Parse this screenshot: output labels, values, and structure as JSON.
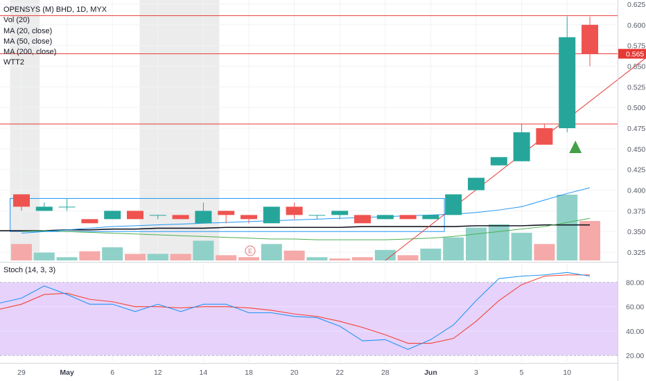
{
  "legend": {
    "title": "OPENSYS (M) BHD, 1D, MYX",
    "lines": [
      "Vol (20)",
      "MA (20, close)",
      "MA (50, close)",
      "MA (200, close)",
      "WTT2"
    ]
  },
  "stoch_label": "Stoch (14, 3, 3)",
  "price_tag": "0.565",
  "colors": {
    "up": "#26a69a",
    "down": "#ef5350",
    "upVol": "#8fd1c8",
    "downVol": "#f5aaa9",
    "ma20": "#2196f3",
    "ma50": "#4caf50",
    "ma200": "#131722",
    "resistance": "#e53935",
    "signal": "#43a047",
    "stochK": "#2196f3",
    "stochD": "#f44336",
    "stochBand": "#e6d2fb"
  },
  "chart_data": [
    {
      "type": "candlestick",
      "title": "OPENSYS (M) BHD, 1D, MYX",
      "ylim": [
        0.315,
        0.63
      ],
      "y_ticks": [
        "0.625",
        "0.600",
        "0.575",
        "0.550",
        "0.525",
        "0.500",
        "0.475",
        "0.450",
        "0.425",
        "0.400",
        "0.375",
        "0.350",
        "0.325"
      ],
      "x_ticks": [
        {
          "idx": 0,
          "label": "29",
          "bold": false
        },
        {
          "idx": 2,
          "label": "May",
          "bold": true
        },
        {
          "idx": 4,
          "label": "6",
          "bold": false
        },
        {
          "idx": 6,
          "label": "12",
          "bold": false
        },
        {
          "idx": 8,
          "label": "14",
          "bold": false
        },
        {
          "idx": 10,
          "label": "18",
          "bold": false
        },
        {
          "idx": 12,
          "label": "20",
          "bold": false
        },
        {
          "idx": 14,
          "label": "22",
          "bold": false
        },
        {
          "idx": 16,
          "label": "28",
          "bold": false
        },
        {
          "idx": 18,
          "label": "Jun",
          "bold": true
        },
        {
          "idx": 20,
          "label": "3",
          "bold": false
        },
        {
          "idx": 22,
          "label": "5",
          "bold": false
        },
        {
          "idx": 24,
          "label": "10",
          "bold": false
        }
      ],
      "candles": [
        {
          "o": 0.395,
          "h": 0.395,
          "c": 0.38,
          "l": 0.375
        },
        {
          "o": 0.375,
          "h": 0.385,
          "c": 0.38,
          "l": 0.375
        },
        {
          "o": 0.38,
          "h": 0.39,
          "c": 0.38,
          "l": 0.375
        },
        {
          "o": 0.365,
          "h": 0.365,
          "c": 0.36,
          "l": 0.36
        },
        {
          "o": 0.365,
          "h": 0.375,
          "c": 0.375,
          "l": 0.365
        },
        {
          "o": 0.375,
          "h": 0.375,
          "c": 0.365,
          "l": 0.365
        },
        {
          "o": 0.37,
          "h": 0.37,
          "c": 0.37,
          "l": 0.365
        },
        {
          "o": 0.37,
          "h": 0.37,
          "c": 0.365,
          "l": 0.365
        },
        {
          "o": 0.36,
          "h": 0.385,
          "c": 0.375,
          "l": 0.36
        },
        {
          "o": 0.375,
          "h": 0.375,
          "c": 0.37,
          "l": 0.36
        },
        {
          "o": 0.37,
          "h": 0.37,
          "c": 0.365,
          "l": 0.36
        },
        {
          "o": 0.36,
          "h": 0.38,
          "c": 0.38,
          "l": 0.36
        },
        {
          "o": 0.38,
          "h": 0.385,
          "c": 0.37,
          "l": 0.365
        },
        {
          "o": 0.37,
          "h": 0.37,
          "c": 0.37,
          "l": 0.365
        },
        {
          "o": 0.37,
          "h": 0.375,
          "c": 0.375,
          "l": 0.365
        },
        {
          "o": 0.37,
          "h": 0.37,
          "c": 0.36,
          "l": 0.36
        },
        {
          "o": 0.365,
          "h": 0.37,
          "c": 0.37,
          "l": 0.365
        },
        {
          "o": 0.37,
          "h": 0.37,
          "c": 0.365,
          "l": 0.365
        },
        {
          "o": 0.365,
          "h": 0.37,
          "c": 0.37,
          "l": 0.365
        },
        {
          "o": 0.37,
          "h": 0.395,
          "c": 0.395,
          "l": 0.37
        },
        {
          "o": 0.4,
          "h": 0.415,
          "c": 0.415,
          "l": 0.4
        },
        {
          "o": 0.43,
          "h": 0.44,
          "c": 0.44,
          "l": 0.43
        },
        {
          "o": 0.435,
          "h": 0.48,
          "c": 0.47,
          "l": 0.435
        },
        {
          "o": 0.475,
          "h": 0.48,
          "c": 0.455,
          "l": 0.455
        },
        {
          "o": 0.475,
          "h": 0.61,
          "c": 0.585,
          "l": 0.47
        },
        {
          "o": 0.6,
          "h": 0.61,
          "c": 0.565,
          "l": 0.55
        }
      ],
      "volume": [
        {
          "v": 0.25,
          "up": false
        },
        {
          "v": 0.12,
          "up": true
        },
        {
          "v": 0.05,
          "up": true
        },
        {
          "v": 0.14,
          "up": false
        },
        {
          "v": 0.2,
          "up": true
        },
        {
          "v": 0.1,
          "up": false
        },
        {
          "v": 0.1,
          "up": true
        },
        {
          "v": 0.1,
          "up": false
        },
        {
          "v": 0.3,
          "up": true
        },
        {
          "v": 0.08,
          "up": false
        },
        {
          "v": 0.05,
          "up": false
        },
        {
          "v": 0.25,
          "up": true
        },
        {
          "v": 0.15,
          "up": false
        },
        {
          "v": 0.05,
          "up": true
        },
        {
          "v": 0.03,
          "up": false
        },
        {
          "v": 0.05,
          "up": false
        },
        {
          "v": 0.16,
          "up": true
        },
        {
          "v": 0.08,
          "up": false
        },
        {
          "v": 0.18,
          "up": true
        },
        {
          "v": 0.35,
          "up": true
        },
        {
          "v": 0.5,
          "up": true
        },
        {
          "v": 0.55,
          "up": true
        },
        {
          "v": 0.42,
          "up": true
        },
        {
          "v": 0.25,
          "up": false
        },
        {
          "v": 1.0,
          "up": true
        },
        {
          "v": 0.6,
          "up": false
        }
      ],
      "ma20": [
        0.348,
        0.35,
        0.352,
        0.354,
        0.356,
        0.357,
        0.358,
        0.359,
        0.36,
        0.361,
        0.362,
        0.363,
        0.364,
        0.365,
        0.366,
        0.367,
        0.368,
        0.369,
        0.37,
        0.371,
        0.373,
        0.376,
        0.38,
        0.388,
        0.396,
        0.403
      ],
      "ma50": [
        0.35,
        0.351,
        0.35,
        0.349,
        0.348,
        0.347,
        0.346,
        0.345,
        0.344,
        0.343,
        0.342,
        0.341,
        0.341,
        0.34,
        0.34,
        0.34,
        0.34,
        0.341,
        0.342,
        0.344,
        0.347,
        0.35,
        0.353,
        0.356,
        0.361,
        0.366
      ],
      "ma200": [
        0.351,
        0.351,
        0.352,
        0.352,
        0.353,
        0.353,
        0.354,
        0.354,
        0.354,
        0.355,
        0.355,
        0.355,
        0.355,
        0.355,
        0.355,
        0.356,
        0.356,
        0.356,
        0.356,
        0.356,
        0.357,
        0.357,
        0.357,
        0.358,
        0.358,
        0.358
      ],
      "hlines": [
        0.611,
        0.565,
        0.48
      ],
      "trendline": [
        {
          "idx": 16.0,
          "y": 0.315
        },
        {
          "idx": 27.6,
          "y": 0.563
        }
      ],
      "channel": {
        "top": 0.39,
        "bottom": 0.35,
        "from_idx": -0.5,
        "to_idx": 18.6
      },
      "weekend_shades": [
        {
          "from_idx": -0.5,
          "to_idx": 0.8
        },
        {
          "from_idx": 5.2,
          "to_idx": 8.7
        }
      ],
      "signal_idx": 24,
      "signal_price": 0.47
    },
    {
      "type": "line",
      "title": "Stoch (14, 3, 3)",
      "ylim": [
        15,
        95
      ],
      "y_ticks": [
        "80.00",
        "60.00",
        "40.00",
        "20.00"
      ],
      "band": [
        20,
        80
      ],
      "series": [
        {
          "values": [
            67,
            77,
            70,
            62,
            62,
            56,
            62,
            56,
            62,
            62,
            55,
            55,
            52,
            51,
            44,
            32,
            33,
            25,
            33,
            45,
            65,
            83,
            85,
            86,
            88,
            85
          ]
        },
        {
          "values": [
            62,
            70,
            71,
            66,
            64,
            60,
            60,
            59,
            60,
            60,
            59,
            57,
            54,
            52,
            48,
            43,
            37,
            30,
            30,
            34,
            48,
            65,
            78,
            85,
            86,
            86
          ]
        }
      ]
    }
  ]
}
